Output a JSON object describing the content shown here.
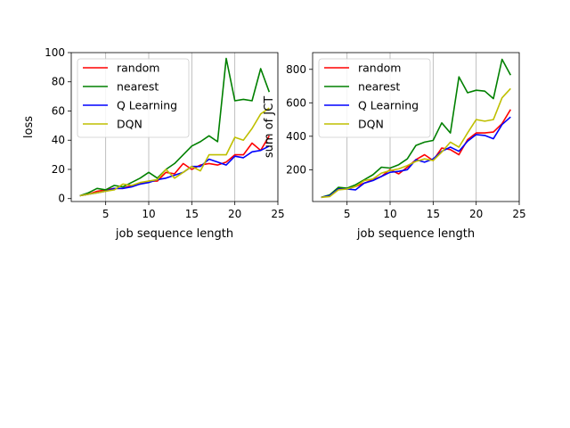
{
  "chart_data": [
    {
      "type": "line",
      "xlabel": "job sequence length",
      "ylabel": "loss",
      "xlim": [
        1,
        25
      ],
      "ylim": [
        -2,
        100
      ],
      "xticks": [
        5,
        10,
        15,
        20,
        25
      ],
      "yticks": [
        0,
        20,
        40,
        60,
        80,
        100
      ],
      "grid": "vertical",
      "legend": "top-left",
      "x": [
        2,
        3,
        4,
        5,
        6,
        7,
        8,
        9,
        10,
        11,
        12,
        13,
        14,
        15,
        16,
        17,
        18,
        19,
        20,
        21,
        22,
        23,
        24
      ],
      "series": [
        {
          "name": "random",
          "color": "#ff0000",
          "values": [
            2,
            3,
            5,
            6,
            7,
            7,
            9,
            10,
            12,
            12,
            18,
            17,
            24,
            20,
            23,
            24,
            23,
            25,
            30,
            30,
            38,
            33,
            43
          ]
        },
        {
          "name": "nearest",
          "color": "#008000",
          "values": [
            2,
            4,
            7,
            6,
            9,
            8,
            11,
            14,
            18,
            14,
            20,
            24,
            30,
            36,
            39,
            43,
            39,
            96,
            67,
            68,
            67,
            89,
            73
          ]
        },
        {
          "name": "Q Learning",
          "color": "#0000ff",
          "values": [
            2,
            3,
            4,
            5,
            7,
            7,
            8,
            10,
            11,
            13,
            14,
            16,
            18,
            22,
            22,
            27,
            25,
            23,
            29,
            28,
            32,
            33,
            36
          ]
        },
        {
          "name": "DQN",
          "color": "#bfbf00",
          "values": [
            2,
            3,
            4,
            5,
            6,
            10,
            9,
            11,
            12,
            13,
            20,
            14,
            18,
            22,
            19,
            30,
            30,
            30,
            42,
            40,
            48,
            58,
            62
          ]
        }
      ]
    },
    {
      "type": "line",
      "xlabel": "job sequence length",
      "ylabel": "sum of JCT",
      "xlim": [
        1,
        25
      ],
      "ylim": [
        10,
        900
      ],
      "xticks": [
        5,
        10,
        15,
        20,
        25
      ],
      "yticks": [
        200,
        400,
        600,
        800
      ],
      "grid": "vertical",
      "legend": "top-left",
      "x": [
        2,
        3,
        4,
        5,
        6,
        7,
        8,
        9,
        10,
        11,
        12,
        13,
        14,
        15,
        16,
        17,
        18,
        19,
        20,
        21,
        22,
        23,
        24
      ],
      "series": [
        {
          "name": "random",
          "color": "#ff0000",
          "values": [
            35,
            45,
            90,
            85,
            100,
            120,
            140,
            160,
            200,
            175,
            215,
            260,
            290,
            255,
            330,
            320,
            290,
            380,
            420,
            420,
            425,
            475,
            560
          ]
        },
        {
          "name": "nearest",
          "color": "#008000",
          "values": [
            35,
            50,
            95,
            90,
            110,
            140,
            170,
            215,
            210,
            230,
            265,
            345,
            365,
            375,
            480,
            420,
            755,
            660,
            675,
            670,
            625,
            860,
            765
          ]
        },
        {
          "name": "Q Learning",
          "color": "#0000ff",
          "values": [
            35,
            45,
            85,
            85,
            80,
            120,
            135,
            160,
            185,
            190,
            200,
            260,
            245,
            265,
            310,
            335,
            310,
            370,
            410,
            405,
            385,
            470,
            515
          ]
        },
        {
          "name": "DQN",
          "color": "#bfbf00",
          "values": [
            35,
            40,
            80,
            85,
            100,
            135,
            145,
            180,
            195,
            205,
            225,
            250,
            265,
            255,
            305,
            365,
            335,
            420,
            500,
            490,
            500,
            630,
            685
          ]
        }
      ]
    }
  ]
}
